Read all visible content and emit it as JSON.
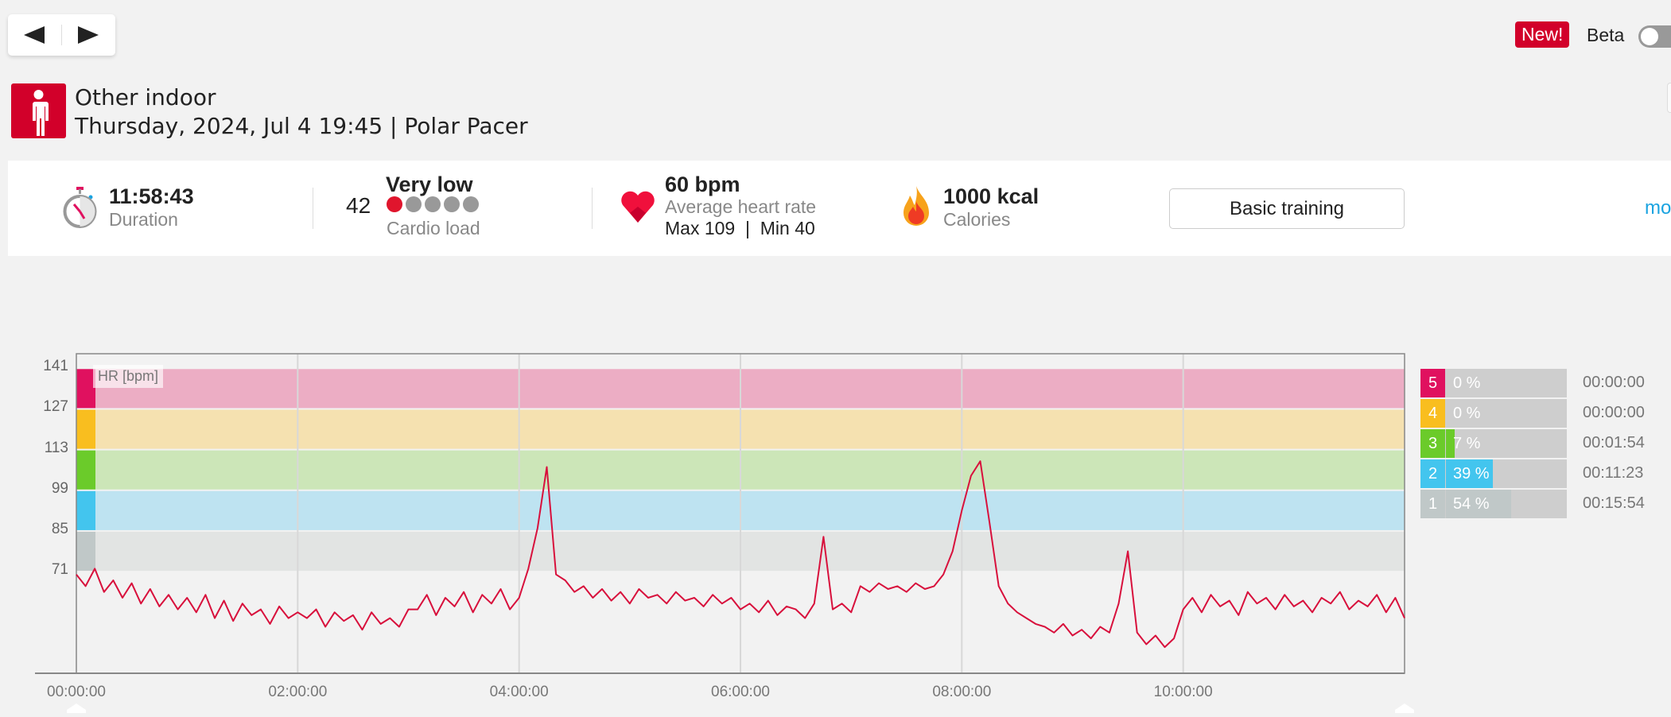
{
  "nav": {
    "prev_icon": "triangle-left-icon",
    "next_icon": "triangle-right-icon"
  },
  "header": {
    "new_badge": "New!",
    "beta_label": "Beta",
    "beta_enabled": false
  },
  "session": {
    "sport": "Other indoor",
    "subtitle": "Thursday, 2024, Jul 4 19:45 | Polar Pacer"
  },
  "summary": {
    "duration_value": "11:58:43",
    "duration_label": "Duration",
    "cardio_value": "42",
    "cardio_level": "Very low",
    "cardio_dots_filled": 1,
    "cardio_dots_total": 5,
    "cardio_label": "Cardio load",
    "hr_value": "60 bpm",
    "hr_label": "Average heart rate",
    "hr_max": "Max 109",
    "hr_sep": "|",
    "hr_min": "Min 40",
    "calories_value": "1000 kcal",
    "calories_label": "Calories",
    "training_button": "Basic training",
    "more_link": "mo"
  },
  "colors": {
    "accent": "#d2002a",
    "hr_line": "#d8103c",
    "link": "#1aa3e0"
  },
  "chart_data": {
    "type": "line",
    "title": "HR [bpm]",
    "xlabel": "",
    "ylabel": "HR [bpm]",
    "xlim_hours": [
      0,
      12
    ],
    "ylim": [
      36,
      146
    ],
    "x_ticks": [
      "00:00:00",
      "02:00:00",
      "04:00:00",
      "06:00:00",
      "08:00:00",
      "10:00:00"
    ],
    "y_ticks": [
      141,
      127,
      113,
      99,
      85,
      71
    ],
    "zones": [
      {
        "zone": 5,
        "from": 127,
        "to": 141,
        "color": "#e0115f",
        "band": "#ecadc4"
      },
      {
        "zone": 4,
        "from": 113,
        "to": 127,
        "color": "#f9be1f",
        "band": "#f5e1b0"
      },
      {
        "zone": 3,
        "from": 99,
        "to": 113,
        "color": "#6bcb2a",
        "band": "#cce6b8"
      },
      {
        "zone": 2,
        "from": 85,
        "to": 99,
        "color": "#43c5ee",
        "band": "#bee3f1"
      },
      {
        "zone": 1,
        "from": 71,
        "to": 85,
        "color": "#c0c8c8",
        "band": "#e2e4e3"
      }
    ],
    "sample_interval_min": 5,
    "hr_bpm": [
      70,
      66,
      72,
      64,
      68,
      62,
      67,
      60,
      65,
      59,
      63,
      58,
      62,
      57,
      63,
      55,
      61,
      54,
      60,
      56,
      58,
      53,
      59,
      55,
      57,
      55,
      58,
      52,
      57,
      54,
      56,
      51,
      57,
      53,
      55,
      52,
      58,
      58,
      63,
      56,
      62,
      59,
      64,
      57,
      63,
      60,
      65,
      58,
      62,
      72,
      86,
      107,
      70,
      68,
      64,
      66,
      62,
      65,
      61,
      64,
      60,
      65,
      62,
      63,
      60,
      64,
      61,
      62,
      59,
      63,
      60,
      62,
      58,
      60,
      57,
      61,
      56,
      59,
      58,
      55,
      60,
      83,
      58,
      60,
      57,
      66,
      64,
      67,
      65,
      66,
      64,
      67,
      65,
      66,
      70,
      78,
      92,
      104,
      109,
      88,
      66,
      60,
      57,
      55,
      53,
      52,
      50,
      53,
      49,
      51,
      48,
      52,
      50,
      60,
      78,
      50,
      46,
      49,
      45,
      48,
      58,
      62,
      57,
      63,
      59,
      61,
      56,
      64,
      60,
      62,
      58,
      63,
      59,
      61,
      57,
      62,
      60,
      64,
      58,
      61,
      59,
      63,
      57,
      62,
      55
    ],
    "zone_summary": [
      {
        "zone": "5",
        "percent": 0,
        "percent_label": "0 %",
        "time": "00:00:00"
      },
      {
        "zone": "4",
        "percent": 0,
        "percent_label": "0 %",
        "time": "00:00:00"
      },
      {
        "zone": "3",
        "percent": 7,
        "percent_label": "7 %",
        "time": "00:01:54"
      },
      {
        "zone": "2",
        "percent": 39,
        "percent_label": "39 %",
        "time": "00:11:23"
      },
      {
        "zone": "1",
        "percent": 54,
        "percent_label": "54 %",
        "time": "00:15:54"
      }
    ]
  }
}
